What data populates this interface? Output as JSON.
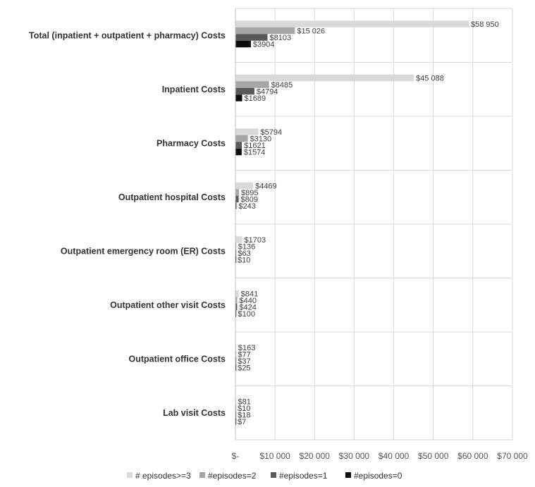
{
  "chart_data": {
    "type": "bar",
    "orientation": "horizontal",
    "categories": [
      "Total (inpatient + outpatient  + pharmacy) Costs",
      "Inpatient Costs",
      "Pharmacy Costs",
      "Outpatient hospital Costs",
      "Outpatient emergency room (ER) Costs",
      "Outpatient other visit Costs",
      "Outpatient office Costs",
      "Lab visit Costs"
    ],
    "series": [
      {
        "name": "# episodes>=3",
        "color": "#d9d9d9",
        "values": [
          58950,
          45088,
          5794,
          4469,
          1703,
          841,
          163,
          81
        ],
        "labels": [
          "$58 950",
          "$45 088",
          "$5794",
          "$4469",
          "$1703",
          "$841",
          "$163",
          "$81"
        ]
      },
      {
        "name": "#episodes=2",
        "color": "#a6a6a6",
        "values": [
          15026,
          8485,
          3130,
          895,
          136,
          440,
          77,
          10
        ],
        "labels": [
          "$15 026",
          "$8485",
          "$3130",
          "$895",
          "$136",
          "$440",
          "$77",
          "$10"
        ]
      },
      {
        "name": "#episodes=1",
        "color": "#595959",
        "values": [
          8103,
          4794,
          1621,
          809,
          63,
          424,
          37,
          18
        ],
        "labels": [
          "$8103",
          "$4794",
          "$1621",
          "$809",
          "$63",
          "$424",
          "$37",
          "$18"
        ]
      },
      {
        "name": "#episodes=0",
        "color": "#0d0d0d",
        "values": [
          3904,
          1689,
          1574,
          243,
          10,
          100,
          25,
          7
        ],
        "labels": [
          "$3904",
          "$1689",
          "$1574",
          "$243",
          "$10",
          "$100",
          "$25",
          "$7"
        ]
      }
    ],
    "xlim": [
      0,
      70000
    ],
    "xticks": [
      0,
      10000,
      20000,
      30000,
      40000,
      50000,
      60000,
      70000
    ],
    "xtick_labels": [
      "$-",
      "$10 000",
      "$20 000",
      "$30 000",
      "$40 000",
      "$50 000",
      "$60 000",
      "$70 000"
    ],
    "grid": true,
    "legend_position": "bottom",
    "title": "",
    "xlabel": "",
    "ylabel": ""
  }
}
